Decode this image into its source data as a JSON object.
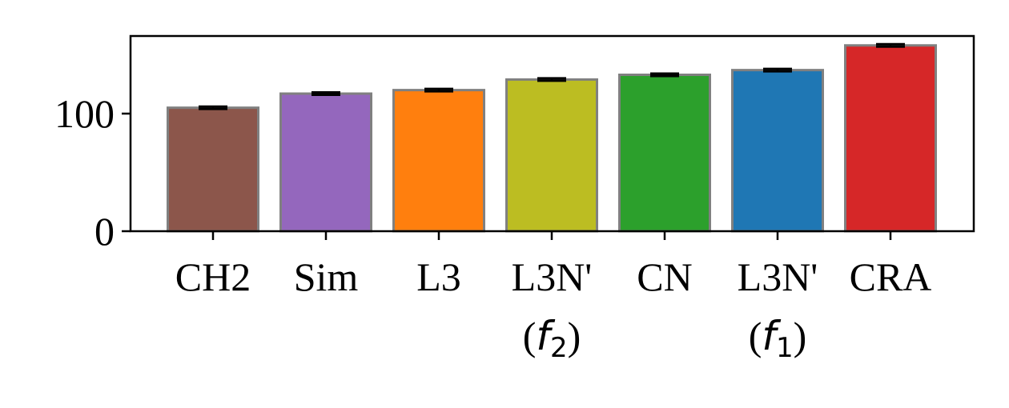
{
  "chart_data": {
    "type": "bar",
    "categories": [
      {
        "label": "CH2",
        "sub": ""
      },
      {
        "label": "Sim",
        "sub": ""
      },
      {
        "label": "L3",
        "sub": ""
      },
      {
        "label": "L3N'",
        "sub": "(f2)",
        "sub_var": "f",
        "sub_index": "2"
      },
      {
        "label": "CN",
        "sub": ""
      },
      {
        "label": "L3N'",
        "sub": "(f1)",
        "sub_var": "f",
        "sub_index": "1"
      },
      {
        "label": "CRA",
        "sub": ""
      }
    ],
    "values": [
      105,
      117,
      120,
      129,
      133,
      137,
      158
    ],
    "errors": [
      1,
      1,
      1,
      1,
      1,
      1,
      1
    ],
    "colors": [
      "#8c564b",
      "#9467bd",
      "#ff7f0e",
      "#bcbd22",
      "#2ca02c",
      "#1f77b4",
      "#d62728"
    ],
    "edge_color": "#808080",
    "ylim": [
      0,
      166
    ],
    "yticks": [
      0,
      100
    ],
    "ytick_labels": [
      "0",
      "100"
    ],
    "title": "",
    "xlabel": "",
    "ylabel": "",
    "grid": false
  }
}
